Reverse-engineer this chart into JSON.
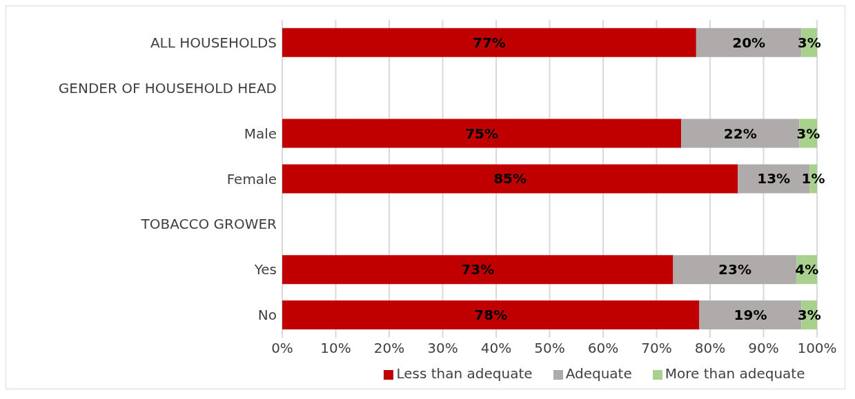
{
  "chart_data": {
    "type": "bar",
    "orientation": "horizontal",
    "stacked": true,
    "categories": [
      "ALL HOUSEHOLDS",
      "GENDER OF HOUSEHOLD HEAD",
      "Male",
      "Female",
      "TOBACCO GROWER",
      "Yes",
      "No"
    ],
    "series": [
      {
        "name": "Less than adequate",
        "color": "#c00000",
        "values": [
          77.4,
          null,
          74.6,
          85.2,
          null,
          73.1,
          78.0
        ],
        "value_labels": [
          "77%",
          null,
          "75%",
          "85%",
          null,
          "73%",
          "78%"
        ]
      },
      {
        "name": "Adequate",
        "color": "#afabab",
        "values": [
          19.7,
          null,
          22.1,
          13.4,
          null,
          23.1,
          19.1
        ],
        "value_labels": [
          "20%",
          null,
          "22%",
          "13%",
          null,
          "23%",
          "19%"
        ]
      },
      {
        "name": "More than adequate",
        "color": "#a9d18e",
        "values": [
          2.9,
          null,
          3.3,
          1.4,
          null,
          3.8,
          2.9
        ],
        "value_labels": [
          "3%",
          null,
          "3%",
          "1%",
          null,
          "4%",
          "3%"
        ]
      }
    ],
    "xlim": [
      0,
      100
    ],
    "xticks": [
      {
        "value": 0,
        "label": "0%"
      },
      {
        "value": 10,
        "label": "10%"
      },
      {
        "value": 20,
        "label": "20%"
      },
      {
        "value": 30,
        "label": "30%"
      },
      {
        "value": 40,
        "label": "40%"
      },
      {
        "value": 50,
        "label": "50%"
      },
      {
        "value": 60,
        "label": "60%"
      },
      {
        "value": 70,
        "label": "70%"
      },
      {
        "value": 80,
        "label": "80%"
      },
      {
        "value": 90,
        "label": "90%"
      },
      {
        "value": 100,
        "label": "100%"
      }
    ],
    "grid": "x",
    "legend": "bottom"
  }
}
